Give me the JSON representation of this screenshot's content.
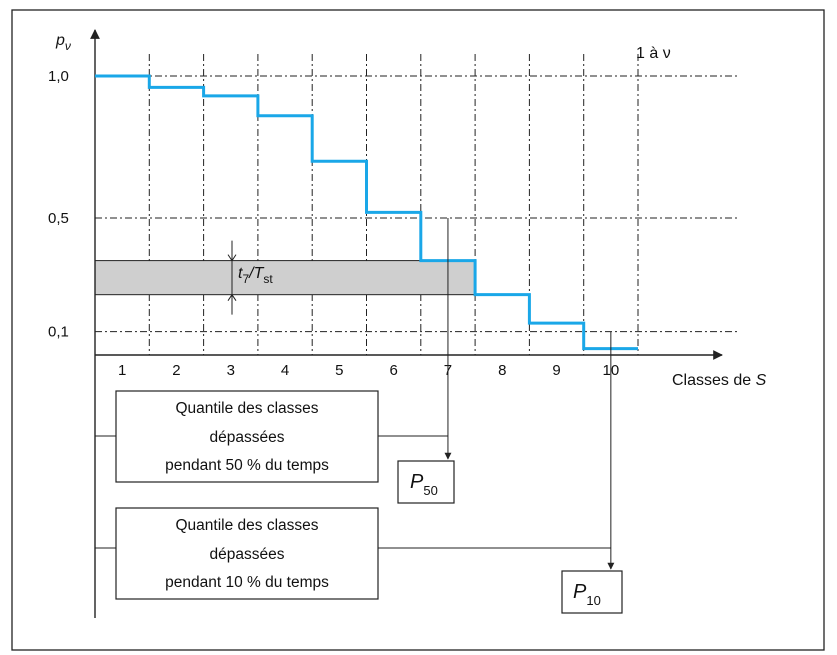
{
  "chart_data": {
    "type": "step",
    "ylabel": "p",
    "ylabel_sub": "ν",
    "xlabel_prefix": "Classes de ",
    "xlabel_var": "S",
    "corner_label": "1 à ν",
    "y_ticks": [
      {
        "value": 1.0,
        "label": "1,0"
      },
      {
        "value": 0.5,
        "label": "0,5"
      },
      {
        "value": 0.1,
        "label": "0,1"
      }
    ],
    "ylim": [
      0.0,
      1.0
    ],
    "categories": [
      "1",
      "2",
      "3",
      "4",
      "5",
      "6",
      "7",
      "8",
      "9",
      "10"
    ],
    "values": [
      1.0,
      0.96,
      0.93,
      0.86,
      0.7,
      0.52,
      0.35,
      0.23,
      0.13,
      0.04
    ],
    "series_color": "#1aa7e8",
    "band": {
      "y_low": 0.23,
      "y_high": 0.35,
      "label_main": "t",
      "label_sub": "7",
      "label_den_main": "T",
      "label_den_sub": "st",
      "fill": "#cfcfcf"
    },
    "quantiles": [
      {
        "level": 0.5,
        "at_boundary": 6.5,
        "box_lines": [
          "Quantile des classes",
          "dépassées",
          "pendant 50 % du temps"
        ],
        "result_main": "P",
        "result_sub": "50"
      },
      {
        "level": 0.1,
        "at_boundary": 9.5,
        "box_lines": [
          "Quantile des classes",
          "dépassées",
          "pendant 10 % du temps"
        ],
        "result_main": "P",
        "result_sub": "10"
      }
    ]
  }
}
